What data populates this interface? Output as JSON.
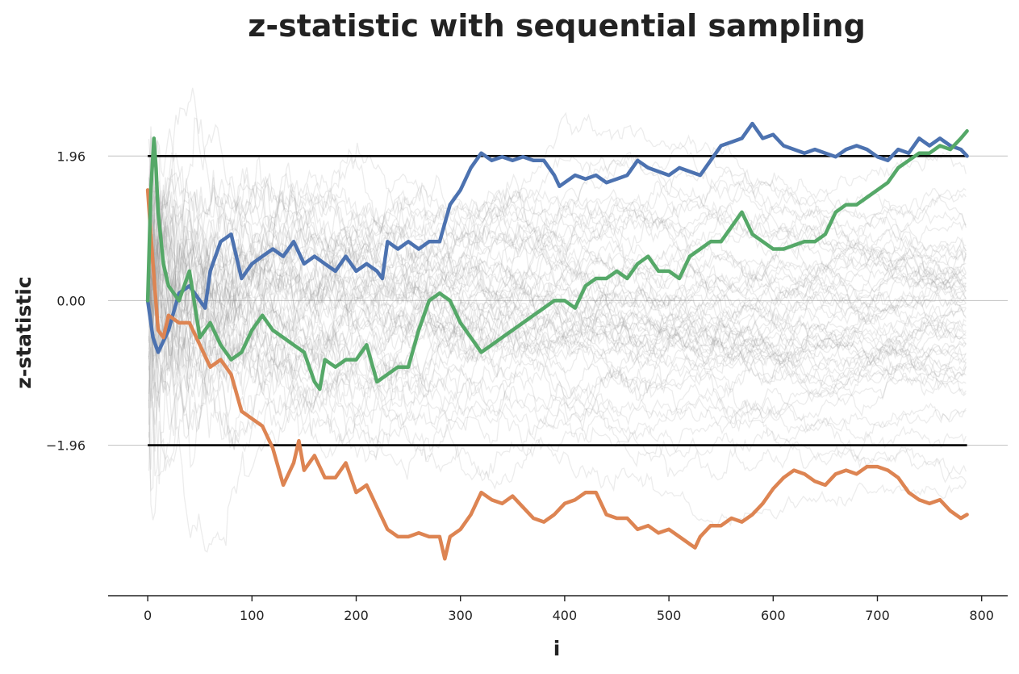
{
  "chart_data": {
    "type": "line",
    "title": "z-statistic with sequential sampling",
    "xlabel": "i",
    "ylabel": "z-statistic",
    "xlim": [
      -38,
      825
    ],
    "ylim": [
      -4.0,
      3.2
    ],
    "xticks": [
      0,
      100,
      200,
      300,
      400,
      500,
      600,
      700,
      800
    ],
    "xtick_labels": [
      "0",
      "100",
      "200",
      "300",
      "400",
      "500",
      "600",
      "700",
      "800"
    ],
    "yticks": [
      -1.96,
      0.0,
      1.96
    ],
    "ytick_labels": [
      "−1.96",
      "0.00",
      "1.96"
    ],
    "grid": "horizontal",
    "reference_lines": [
      1.96,
      -1.96
    ],
    "background_paths": {
      "count": 60,
      "color": "#888888",
      "description": "grey random-walk z-statistic paths"
    },
    "series": [
      {
        "color": "#4c72b0",
        "x": [
          0,
          5,
          10,
          20,
          30,
          40,
          50,
          55,
          60,
          70,
          80,
          90,
          100,
          110,
          120,
          130,
          140,
          150,
          160,
          170,
          180,
          190,
          200,
          210,
          220,
          225,
          230,
          240,
          250,
          260,
          270,
          280,
          290,
          300,
          310,
          320,
          330,
          340,
          350,
          360,
          370,
          380,
          390,
          395,
          400,
          410,
          420,
          430,
          440,
          450,
          460,
          470,
          480,
          490,
          500,
          510,
          520,
          530,
          540,
          550,
          560,
          570,
          580,
          590,
          600,
          610,
          620,
          630,
          640,
          650,
          660,
          670,
          680,
          690,
          700,
          710,
          720,
          730,
          740,
          750,
          760,
          770,
          780,
          786
        ],
        "y": [
          0.0,
          -0.5,
          -0.7,
          -0.4,
          0.1,
          0.2,
          0.0,
          -0.1,
          0.4,
          0.8,
          0.9,
          0.3,
          0.5,
          0.6,
          0.7,
          0.6,
          0.8,
          0.5,
          0.6,
          0.5,
          0.4,
          0.6,
          0.4,
          0.5,
          0.4,
          0.3,
          0.8,
          0.7,
          0.8,
          0.7,
          0.8,
          0.8,
          1.3,
          1.5,
          1.8,
          2.0,
          1.9,
          1.95,
          1.9,
          1.95,
          1.9,
          1.9,
          1.7,
          1.55,
          1.6,
          1.7,
          1.65,
          1.7,
          1.6,
          1.65,
          1.7,
          1.9,
          1.8,
          1.75,
          1.7,
          1.8,
          1.75,
          1.7,
          1.9,
          2.1,
          2.15,
          2.2,
          2.4,
          2.2,
          2.25,
          2.1,
          2.05,
          2.0,
          2.05,
          2.0,
          1.95,
          2.05,
          2.1,
          2.05,
          1.95,
          1.9,
          2.05,
          2.0,
          2.2,
          2.1,
          2.2,
          2.1,
          2.05,
          1.96
        ]
      },
      {
        "color": "#dd8452",
        "x": [
          0,
          5,
          10,
          15,
          20,
          30,
          40,
          50,
          60,
          70,
          80,
          90,
          100,
          110,
          120,
          130,
          140,
          145,
          150,
          160,
          170,
          180,
          190,
          200,
          210,
          220,
          230,
          240,
          250,
          260,
          270,
          280,
          285,
          290,
          300,
          310,
          320,
          330,
          340,
          350,
          360,
          370,
          380,
          390,
          400,
          410,
          420,
          430,
          440,
          450,
          460,
          470,
          480,
          490,
          500,
          510,
          520,
          525,
          530,
          540,
          550,
          560,
          570,
          580,
          590,
          600,
          610,
          620,
          630,
          640,
          650,
          660,
          670,
          680,
          690,
          700,
          710,
          720,
          730,
          740,
          750,
          760,
          770,
          780,
          786
        ],
        "y": [
          1.5,
          0.5,
          -0.4,
          -0.5,
          -0.2,
          -0.3,
          -0.3,
          -0.6,
          -0.9,
          -0.8,
          -1.0,
          -1.5,
          -1.6,
          -1.7,
          -2.0,
          -2.5,
          -2.2,
          -1.9,
          -2.3,
          -2.1,
          -2.4,
          -2.4,
          -2.2,
          -2.6,
          -2.5,
          -2.8,
          -3.1,
          -3.2,
          -3.2,
          -3.15,
          -3.2,
          -3.2,
          -3.5,
          -3.2,
          -3.1,
          -2.9,
          -2.6,
          -2.7,
          -2.75,
          -2.65,
          -2.8,
          -2.95,
          -3.0,
          -2.9,
          -2.75,
          -2.7,
          -2.6,
          -2.6,
          -2.9,
          -2.95,
          -2.95,
          -3.1,
          -3.05,
          -3.15,
          -3.1,
          -3.2,
          -3.3,
          -3.35,
          -3.2,
          -3.05,
          -3.05,
          -2.95,
          -3.0,
          -2.9,
          -2.75,
          -2.55,
          -2.4,
          -2.3,
          -2.35,
          -2.45,
          -2.5,
          -2.35,
          -2.3,
          -2.35,
          -2.25,
          -2.25,
          -2.3,
          -2.4,
          -2.6,
          -2.7,
          -2.75,
          -2.7,
          -2.85,
          -2.95,
          -2.9
        ]
      },
      {
        "color": "#55a868",
        "x": [
          0,
          3,
          6,
          8,
          10,
          15,
          20,
          30,
          40,
          50,
          60,
          70,
          80,
          90,
          100,
          110,
          120,
          130,
          140,
          150,
          160,
          165,
          170,
          180,
          190,
          200,
          210,
          220,
          230,
          240,
          250,
          260,
          270,
          280,
          290,
          300,
          310,
          320,
          330,
          340,
          350,
          360,
          370,
          380,
          390,
          400,
          410,
          420,
          430,
          440,
          450,
          460,
          470,
          480,
          490,
          500,
          510,
          520,
          530,
          540,
          550,
          560,
          570,
          580,
          590,
          600,
          610,
          620,
          630,
          640,
          650,
          660,
          670,
          680,
          690,
          700,
          710,
          720,
          730,
          740,
          750,
          760,
          770,
          780,
          786
        ],
        "y": [
          0.0,
          1.5,
          2.2,
          1.8,
          1.2,
          0.5,
          0.2,
          0.0,
          0.4,
          -0.5,
          -0.3,
          -0.6,
          -0.8,
          -0.7,
          -0.4,
          -0.2,
          -0.4,
          -0.5,
          -0.6,
          -0.7,
          -1.1,
          -1.2,
          -0.8,
          -0.9,
          -0.8,
          -0.8,
          -0.6,
          -1.1,
          -1.0,
          -0.9,
          -0.9,
          -0.4,
          0.0,
          0.1,
          0.0,
          -0.3,
          -0.5,
          -0.7,
          -0.6,
          -0.5,
          -0.4,
          -0.3,
          -0.2,
          -0.1,
          0.0,
          0.0,
          -0.1,
          0.2,
          0.3,
          0.3,
          0.4,
          0.3,
          0.5,
          0.6,
          0.4,
          0.4,
          0.3,
          0.6,
          0.7,
          0.8,
          0.8,
          1.0,
          1.2,
          0.9,
          0.8,
          0.7,
          0.7,
          0.75,
          0.8,
          0.8,
          0.9,
          1.2,
          1.3,
          1.3,
          1.4,
          1.5,
          1.6,
          1.8,
          1.9,
          2.0,
          2.0,
          2.1,
          2.05,
          2.2,
          2.3
        ]
      }
    ]
  }
}
